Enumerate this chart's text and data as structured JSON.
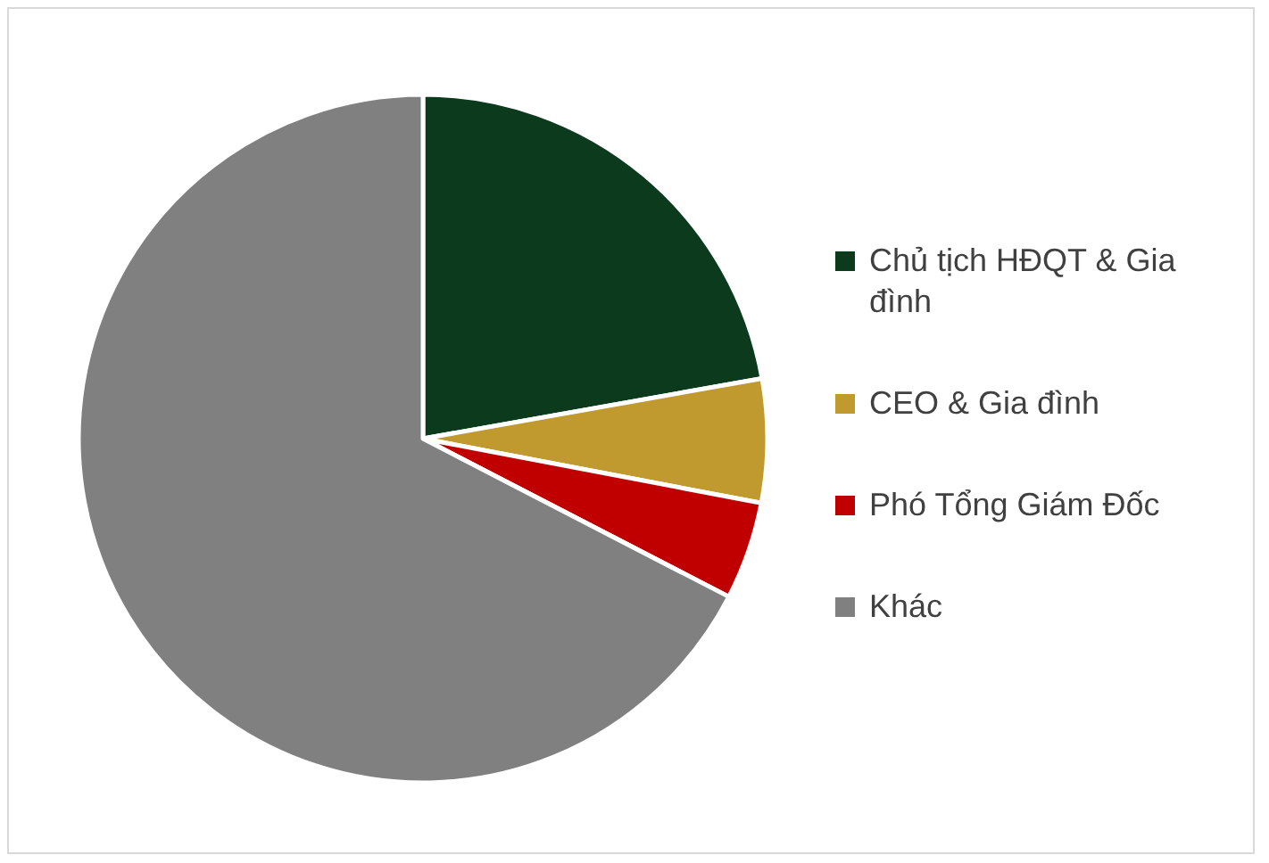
{
  "chart_data": {
    "type": "pie",
    "categories": [
      "Chủ tịch HĐQT & Gia đình",
      "CEO & Gia đình",
      "Phó Tổng Giám Đốc",
      "Khác"
    ],
    "values": [
      22.2,
      5.8,
      4.6,
      67.4
    ],
    "colors": [
      "#0b3a1c",
      "#c0992f",
      "#c00000",
      "#808080"
    ],
    "legend": "right"
  }
}
